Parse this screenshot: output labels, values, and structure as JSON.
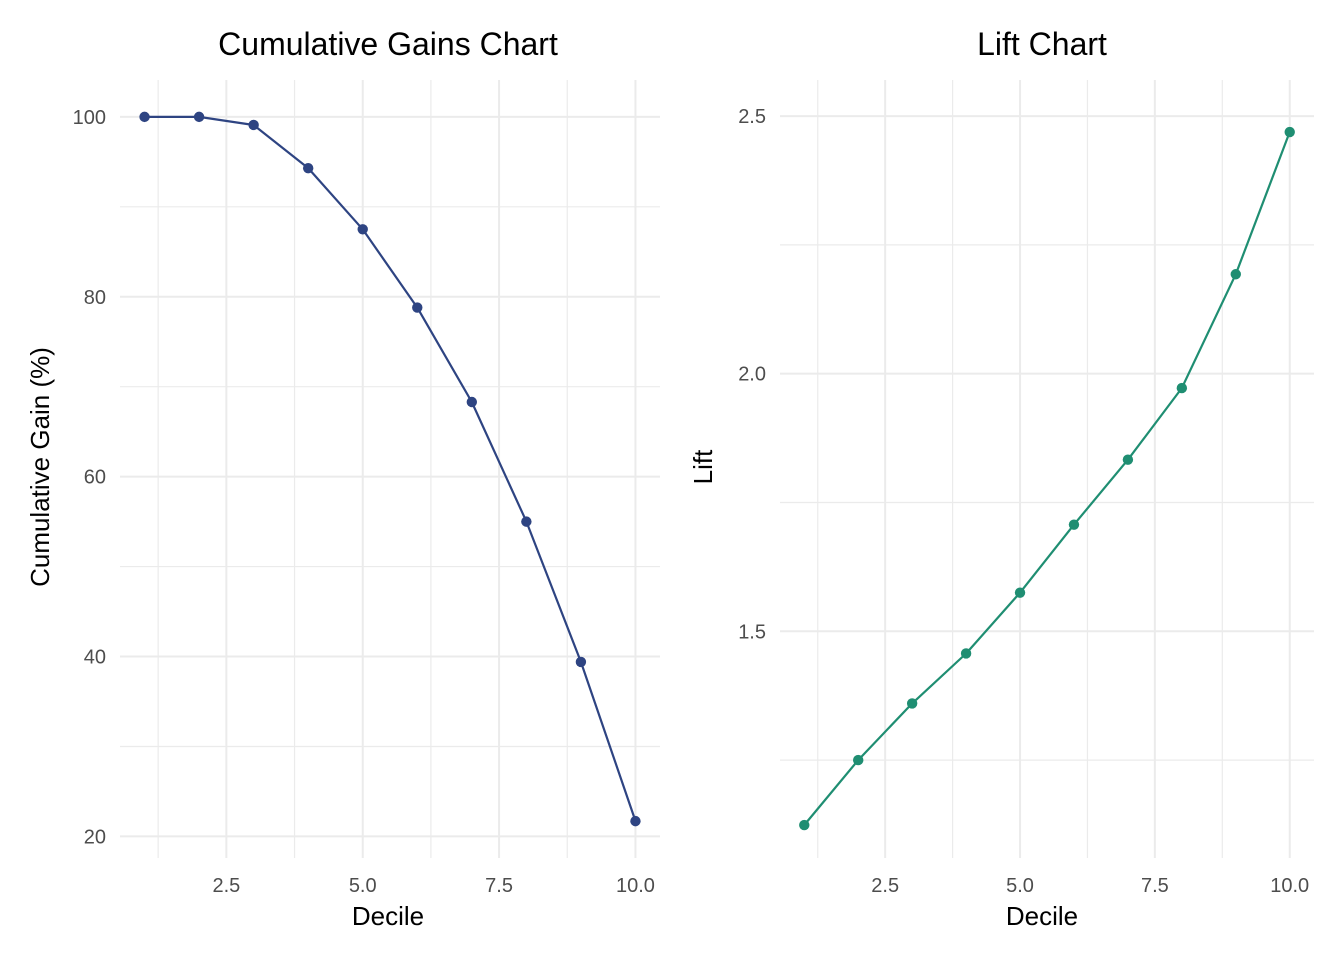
{
  "chart_data": [
    {
      "type": "line",
      "title": "Cumulative Gains Chart",
      "xlabel": "Decile",
      "ylabel": "Cumulative Gain (%)",
      "x": [
        1,
        2,
        3,
        4,
        5,
        6,
        7,
        8,
        9,
        10
      ],
      "series": [
        {
          "values": [
            100.0,
            100.0,
            99.1,
            94.3,
            87.5,
            78.8,
            68.3,
            55.0,
            39.4,
            21.7
          ]
        }
      ],
      "xlim": [
        0.55,
        10.45
      ],
      "ylim": [
        17.6,
        104.1
      ],
      "x_ticks": [
        2.5,
        5.0,
        7.5,
        10.0
      ],
      "x_tick_labels": [
        "2.5",
        "5.0",
        "7.5",
        "10.0"
      ],
      "y_ticks": [
        20,
        40,
        60,
        80,
        100
      ],
      "y_tick_labels": [
        "20",
        "40",
        "60",
        "80",
        "100"
      ],
      "grid": true,
      "color": "#2e4482"
    },
    {
      "type": "line",
      "title": "Lift Chart",
      "xlabel": "Decile",
      "ylabel": "Lift",
      "x": [
        1,
        2,
        3,
        4,
        5,
        6,
        7,
        8,
        9,
        10
      ],
      "series": [
        {
          "values": [
            1.124,
            1.25,
            1.36,
            1.457,
            1.575,
            1.707,
            1.833,
            1.972,
            2.193,
            2.469
          ]
        }
      ],
      "xlim": [
        0.55,
        10.45
      ],
      "ylim": [
        1.06,
        2.57
      ],
      "x_ticks": [
        2.5,
        5.0,
        7.5,
        10.0
      ],
      "x_tick_labels": [
        "2.5",
        "5.0",
        "7.5",
        "10.0"
      ],
      "y_ticks": [
        1.5,
        2.0,
        2.5
      ],
      "y_tick_labels": [
        "1.5",
        "2.0",
        "2.5"
      ],
      "grid": true,
      "color": "#1f8e72"
    }
  ]
}
